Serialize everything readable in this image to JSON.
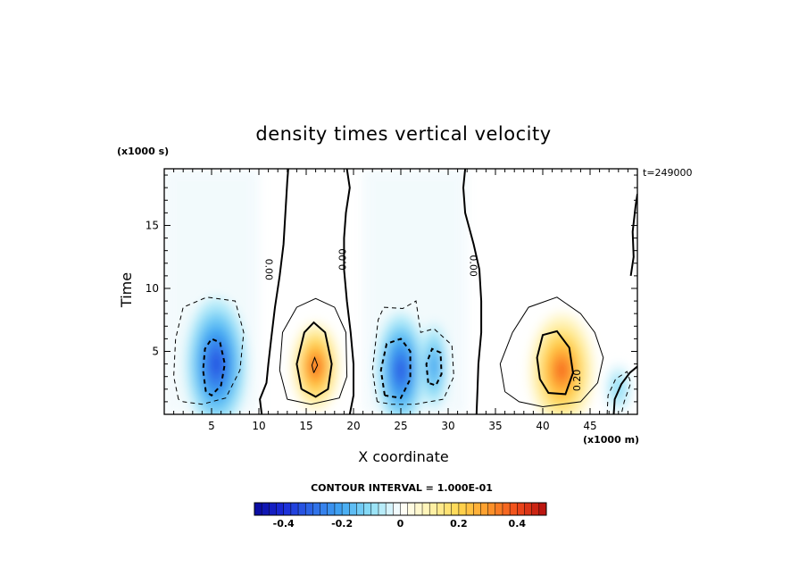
{
  "chart_data": {
    "type": "heatmap",
    "title": "density times vertical velocity",
    "xlabel": "X coordinate",
    "ylabel": "Time",
    "x_scale_note": "(x1000 m)",
    "y_scale_note": "(x1000 s)",
    "timestamp": "t=249000",
    "xlim": [
      0,
      50
    ],
    "ylim": [
      0,
      19.5
    ],
    "x_ticks": [
      5,
      10,
      15,
      20,
      25,
      30,
      35,
      40,
      45
    ],
    "y_ticks": [
      5,
      10,
      15
    ],
    "x_tick_labels": [
      "5",
      "10",
      "15",
      "20",
      "25",
      "30",
      "35",
      "40",
      "45"
    ],
    "y_tick_labels": [
      "5",
      "10",
      "15"
    ],
    "contour_interval_text": "CONTOUR INTERVAL = 1.000E-01",
    "contour_interval": 0.1,
    "contour_labels": [
      "0.00",
      "0.00",
      "0.00",
      "0.20"
    ],
    "colorbar": {
      "range": [
        -0.5,
        0.5
      ],
      "tick_values": [
        -0.4,
        -0.2,
        0,
        0.2,
        0.4
      ],
      "tick_labels": [
        "-0.4",
        "-0.2",
        "0",
        "0.2",
        "0.4"
      ],
      "colors": [
        "#0a0a9c",
        "#1a2ad8",
        "#2f6be8",
        "#41a8f2",
        "#8ee0f6",
        "#ffffff",
        "#fff3b0",
        "#ffd84f",
        "#ff9a2c",
        "#f04a1a",
        "#b50f0f"
      ]
    },
    "features": [
      {
        "x": 5.5,
        "y": 4.0,
        "value": -0.34,
        "sx": 3.2,
        "sy": 5.2
      },
      {
        "x": 16.0,
        "y": 3.8,
        "value": 0.37,
        "sx": 2.5,
        "sy": 3.5
      },
      {
        "x": 25.0,
        "y": 3.5,
        "value": -0.33,
        "sx": 2.6,
        "sy": 4.5
      },
      {
        "x": 28.5,
        "y": 3.8,
        "value": -0.22,
        "sx": 1.5,
        "sy": 3.5
      },
      {
        "x": 42.0,
        "y": 3.5,
        "value": 0.36,
        "sx": 3.4,
        "sy": 4.5
      },
      {
        "x": 48.0,
        "y": 2.0,
        "value": -0.12,
        "sx": 1.4,
        "sy": 2.0
      }
    ]
  }
}
